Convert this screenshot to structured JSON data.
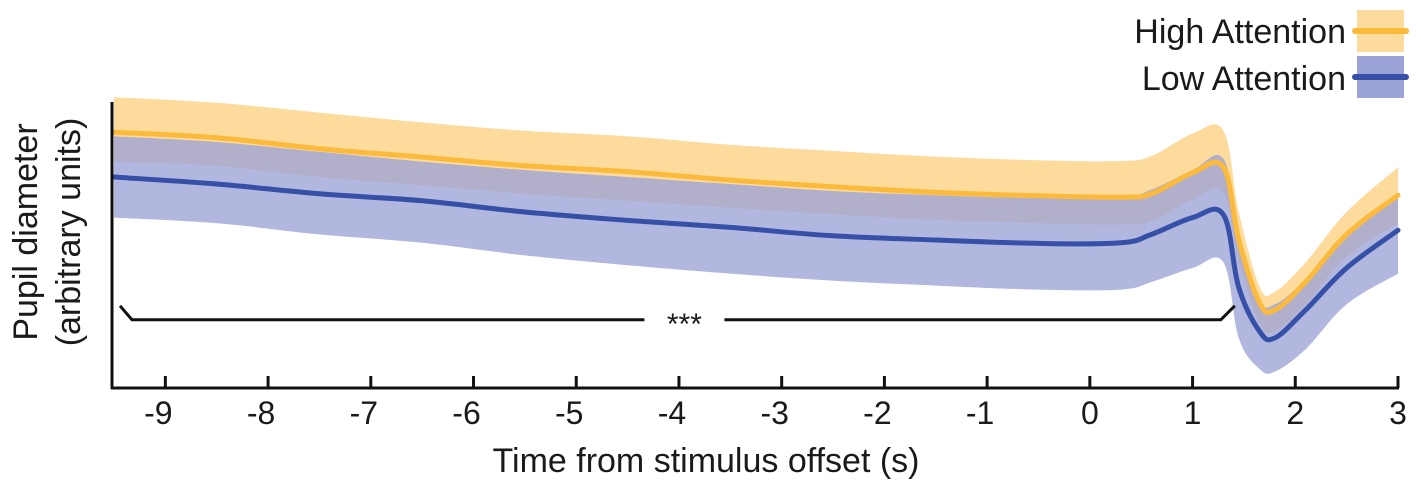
{
  "chart_data": {
    "type": "line",
    "xlabel": "Time from stimulus offset (s)",
    "ylabel_lines": [
      "Pupil diameter",
      "(arbitrary units)"
    ],
    "xlim": [
      -9.5,
      3
    ],
    "ylim": [
      0,
      1
    ],
    "x_ticks": [
      -9,
      -8,
      -7,
      -6,
      -5,
      -4,
      -3,
      -2,
      -1,
      0,
      1,
      2,
      3
    ],
    "y_ticks_shown": false,
    "grid": false,
    "legend_position": "top-right",
    "series": [
      {
        "name": "High Attention",
        "color": "#FBBA3C",
        "band_color": "#FCDB9C",
        "x": [
          -9.5,
          -8.5,
          -7.5,
          -6.5,
          -5.5,
          -4.5,
          -3.5,
          -2.5,
          -1.5,
          -0.5,
          0.3,
          0.6,
          1.0,
          1.3,
          1.45,
          1.65,
          1.8,
          2.1,
          2.5,
          3.0
        ],
        "mean": [
          0.885,
          0.865,
          0.826,
          0.796,
          0.765,
          0.744,
          0.714,
          0.69,
          0.67,
          0.658,
          0.653,
          0.665,
          0.74,
          0.76,
          0.5,
          0.278,
          0.25,
          0.35,
          0.52,
          0.66
        ],
        "lower": [
          0.78,
          0.765,
          0.725,
          0.695,
          0.665,
          0.64,
          0.615,
          0.592,
          0.572,
          0.56,
          0.555,
          0.568,
          0.645,
          0.67,
          0.42,
          0.205,
          0.175,
          0.27,
          0.44,
          0.56
        ],
        "upper": [
          1.01,
          0.99,
          0.955,
          0.92,
          0.89,
          0.87,
          0.84,
          0.818,
          0.798,
          0.785,
          0.782,
          0.8,
          0.88,
          0.89,
          0.6,
          0.335,
          0.315,
          0.42,
          0.6,
          0.76
        ]
      },
      {
        "name": "Low Attention",
        "color": "#3550A6",
        "band_color": "#9CA3D7",
        "x": [
          -9.5,
          -8.5,
          -7.5,
          -6.5,
          -5.5,
          -4.5,
          -3.5,
          -2.5,
          -1.5,
          -0.5,
          0.3,
          0.6,
          1.0,
          1.3,
          1.45,
          1.65,
          1.8,
          2.1,
          2.5,
          3.0
        ],
        "mean": [
          0.725,
          0.7,
          0.665,
          0.64,
          0.6,
          0.57,
          0.545,
          0.515,
          0.5,
          0.488,
          0.49,
          0.52,
          0.58,
          0.59,
          0.33,
          0.175,
          0.15,
          0.25,
          0.4,
          0.535
        ],
        "lower": [
          0.58,
          0.56,
          0.52,
          0.49,
          0.445,
          0.41,
          0.38,
          0.355,
          0.337,
          0.323,
          0.323,
          0.35,
          0.4,
          0.42,
          0.15,
          0.04,
          0.03,
          0.11,
          0.27,
          0.38
        ],
        "upper": [
          0.87,
          0.85,
          0.815,
          0.78,
          0.75,
          0.725,
          0.7,
          0.675,
          0.66,
          0.65,
          0.652,
          0.68,
          0.75,
          0.79,
          0.52,
          0.29,
          0.27,
          0.36,
          0.53,
          0.65
        ]
      }
    ],
    "annotations": [
      {
        "text": "***",
        "type": "significance-bracket",
        "x_start": -9.5,
        "x_end": 1.45,
        "y": 0.215
      }
    ]
  }
}
